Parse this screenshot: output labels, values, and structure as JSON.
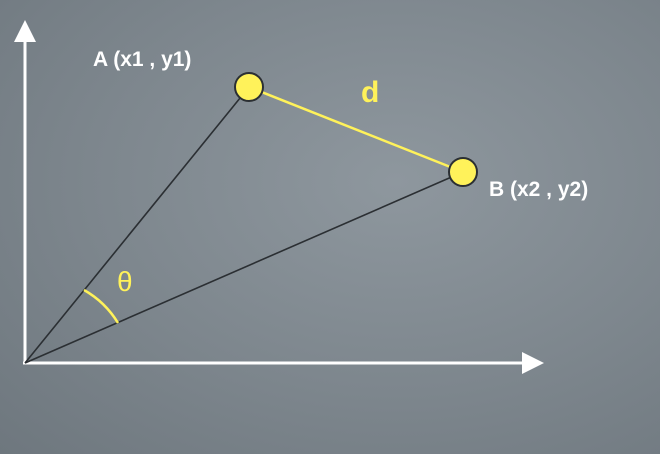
{
  "labels": {
    "point_a": "A (x1 , y1)",
    "point_b": "B (x2 , y2)",
    "distance": "d",
    "angle": "θ"
  },
  "colors": {
    "axis": "#ffffff",
    "ray": "#2b2f33",
    "segment": "#fff25a",
    "point_fill": "#fff25a",
    "point_stroke": "#2b2f33",
    "angle_arc": "#fff25a",
    "label_text": "#ffffff",
    "highlight_text": "#fff25a"
  }
}
